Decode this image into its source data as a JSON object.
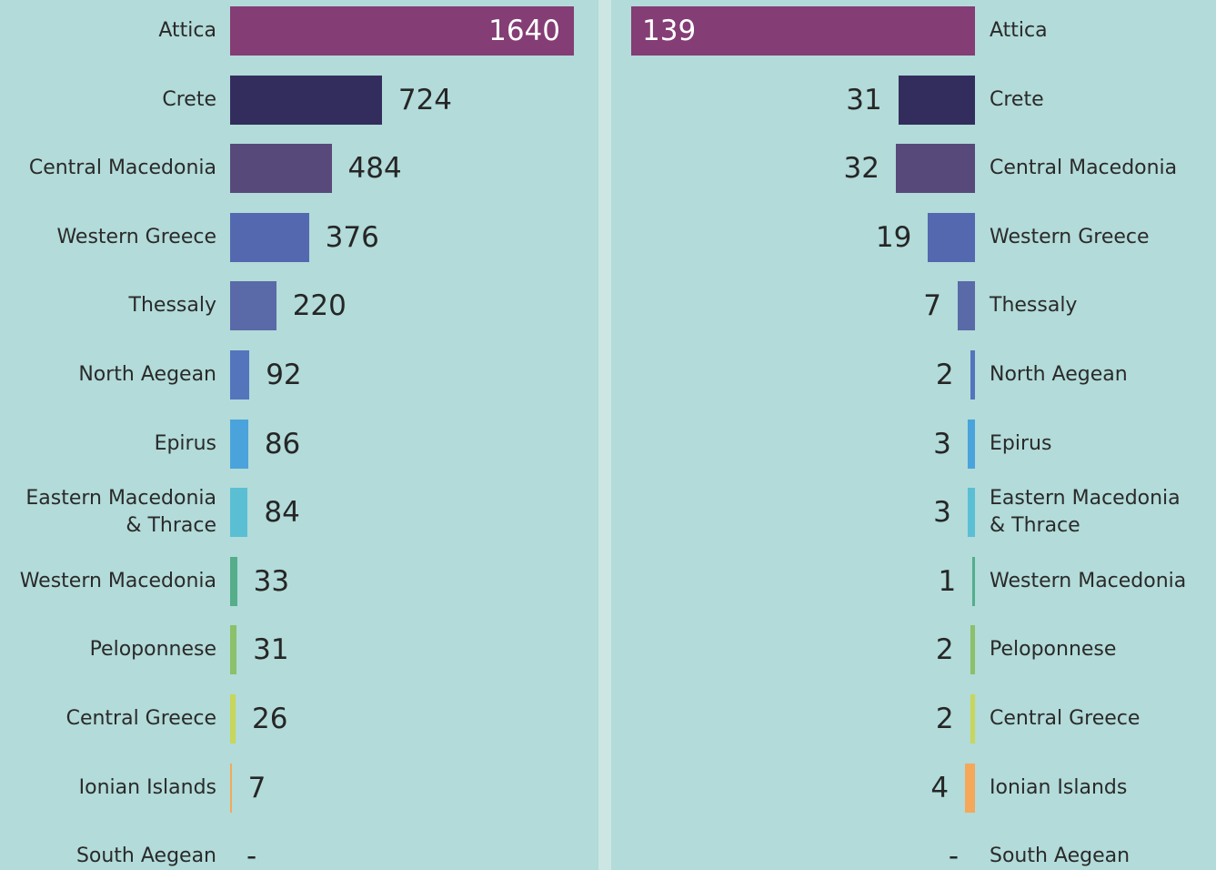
{
  "chart_data": [
    {
      "type": "bar",
      "orientation": "horizontal",
      "side": "left",
      "categories": [
        "Attica",
        "Crete",
        "Central Macedonia",
        "Western Greece",
        "Thessaly",
        "North Aegean",
        "Epirus",
        "Eastern Macedonia\n& Thrace",
        "Western Macedonia",
        "Peloponnese",
        "Central Greece",
        "Ionian Islands",
        "South Aegean"
      ],
      "values": [
        1640,
        724,
        484,
        376,
        220,
        92,
        86,
        84,
        33,
        31,
        26,
        7,
        null
      ],
      "value_labels": [
        "1640",
        "724",
        "484",
        "376",
        "220",
        "92",
        "86",
        "84",
        "33",
        "31",
        "26",
        "7",
        "-"
      ],
      "colors": [
        "#843d75",
        "#332d5e",
        "#574a7a",
        "#5468b0",
        "#5a6aa8",
        "#5475bc",
        "#4ba3dc",
        "#5bbfd4",
        "#55ad8a",
        "#8cc06a",
        "#c8d65a",
        "#f5a85a",
        "#8a6a50"
      ]
    },
    {
      "type": "bar",
      "orientation": "horizontal",
      "side": "right",
      "categories": [
        "Attica",
        "Crete",
        "Central Macedonia",
        "Western Greece",
        "Thessaly",
        "North Aegean",
        "Epirus",
        "Eastern Macedonia\n& Thrace",
        "Western Macedonia",
        "Peloponnese",
        "Central Greece",
        "Ionian Islands",
        "South Aegean"
      ],
      "values": [
        139,
        31,
        32,
        19,
        7,
        2,
        3,
        3,
        1,
        2,
        2,
        4,
        null
      ],
      "value_labels": [
        "139",
        "31",
        "32",
        "19",
        "7",
        "2",
        "3",
        "3",
        "1",
        "2",
        "2",
        "4",
        "-"
      ],
      "colors": [
        "#843d75",
        "#332d5e",
        "#574a7a",
        "#5468b0",
        "#5a6aa8",
        "#5475bc",
        "#4ba3dc",
        "#5bbfd4",
        "#55ad8a",
        "#8cc06a",
        "#c8d65a",
        "#f5a85a",
        "#8a6a50"
      ]
    }
  ]
}
